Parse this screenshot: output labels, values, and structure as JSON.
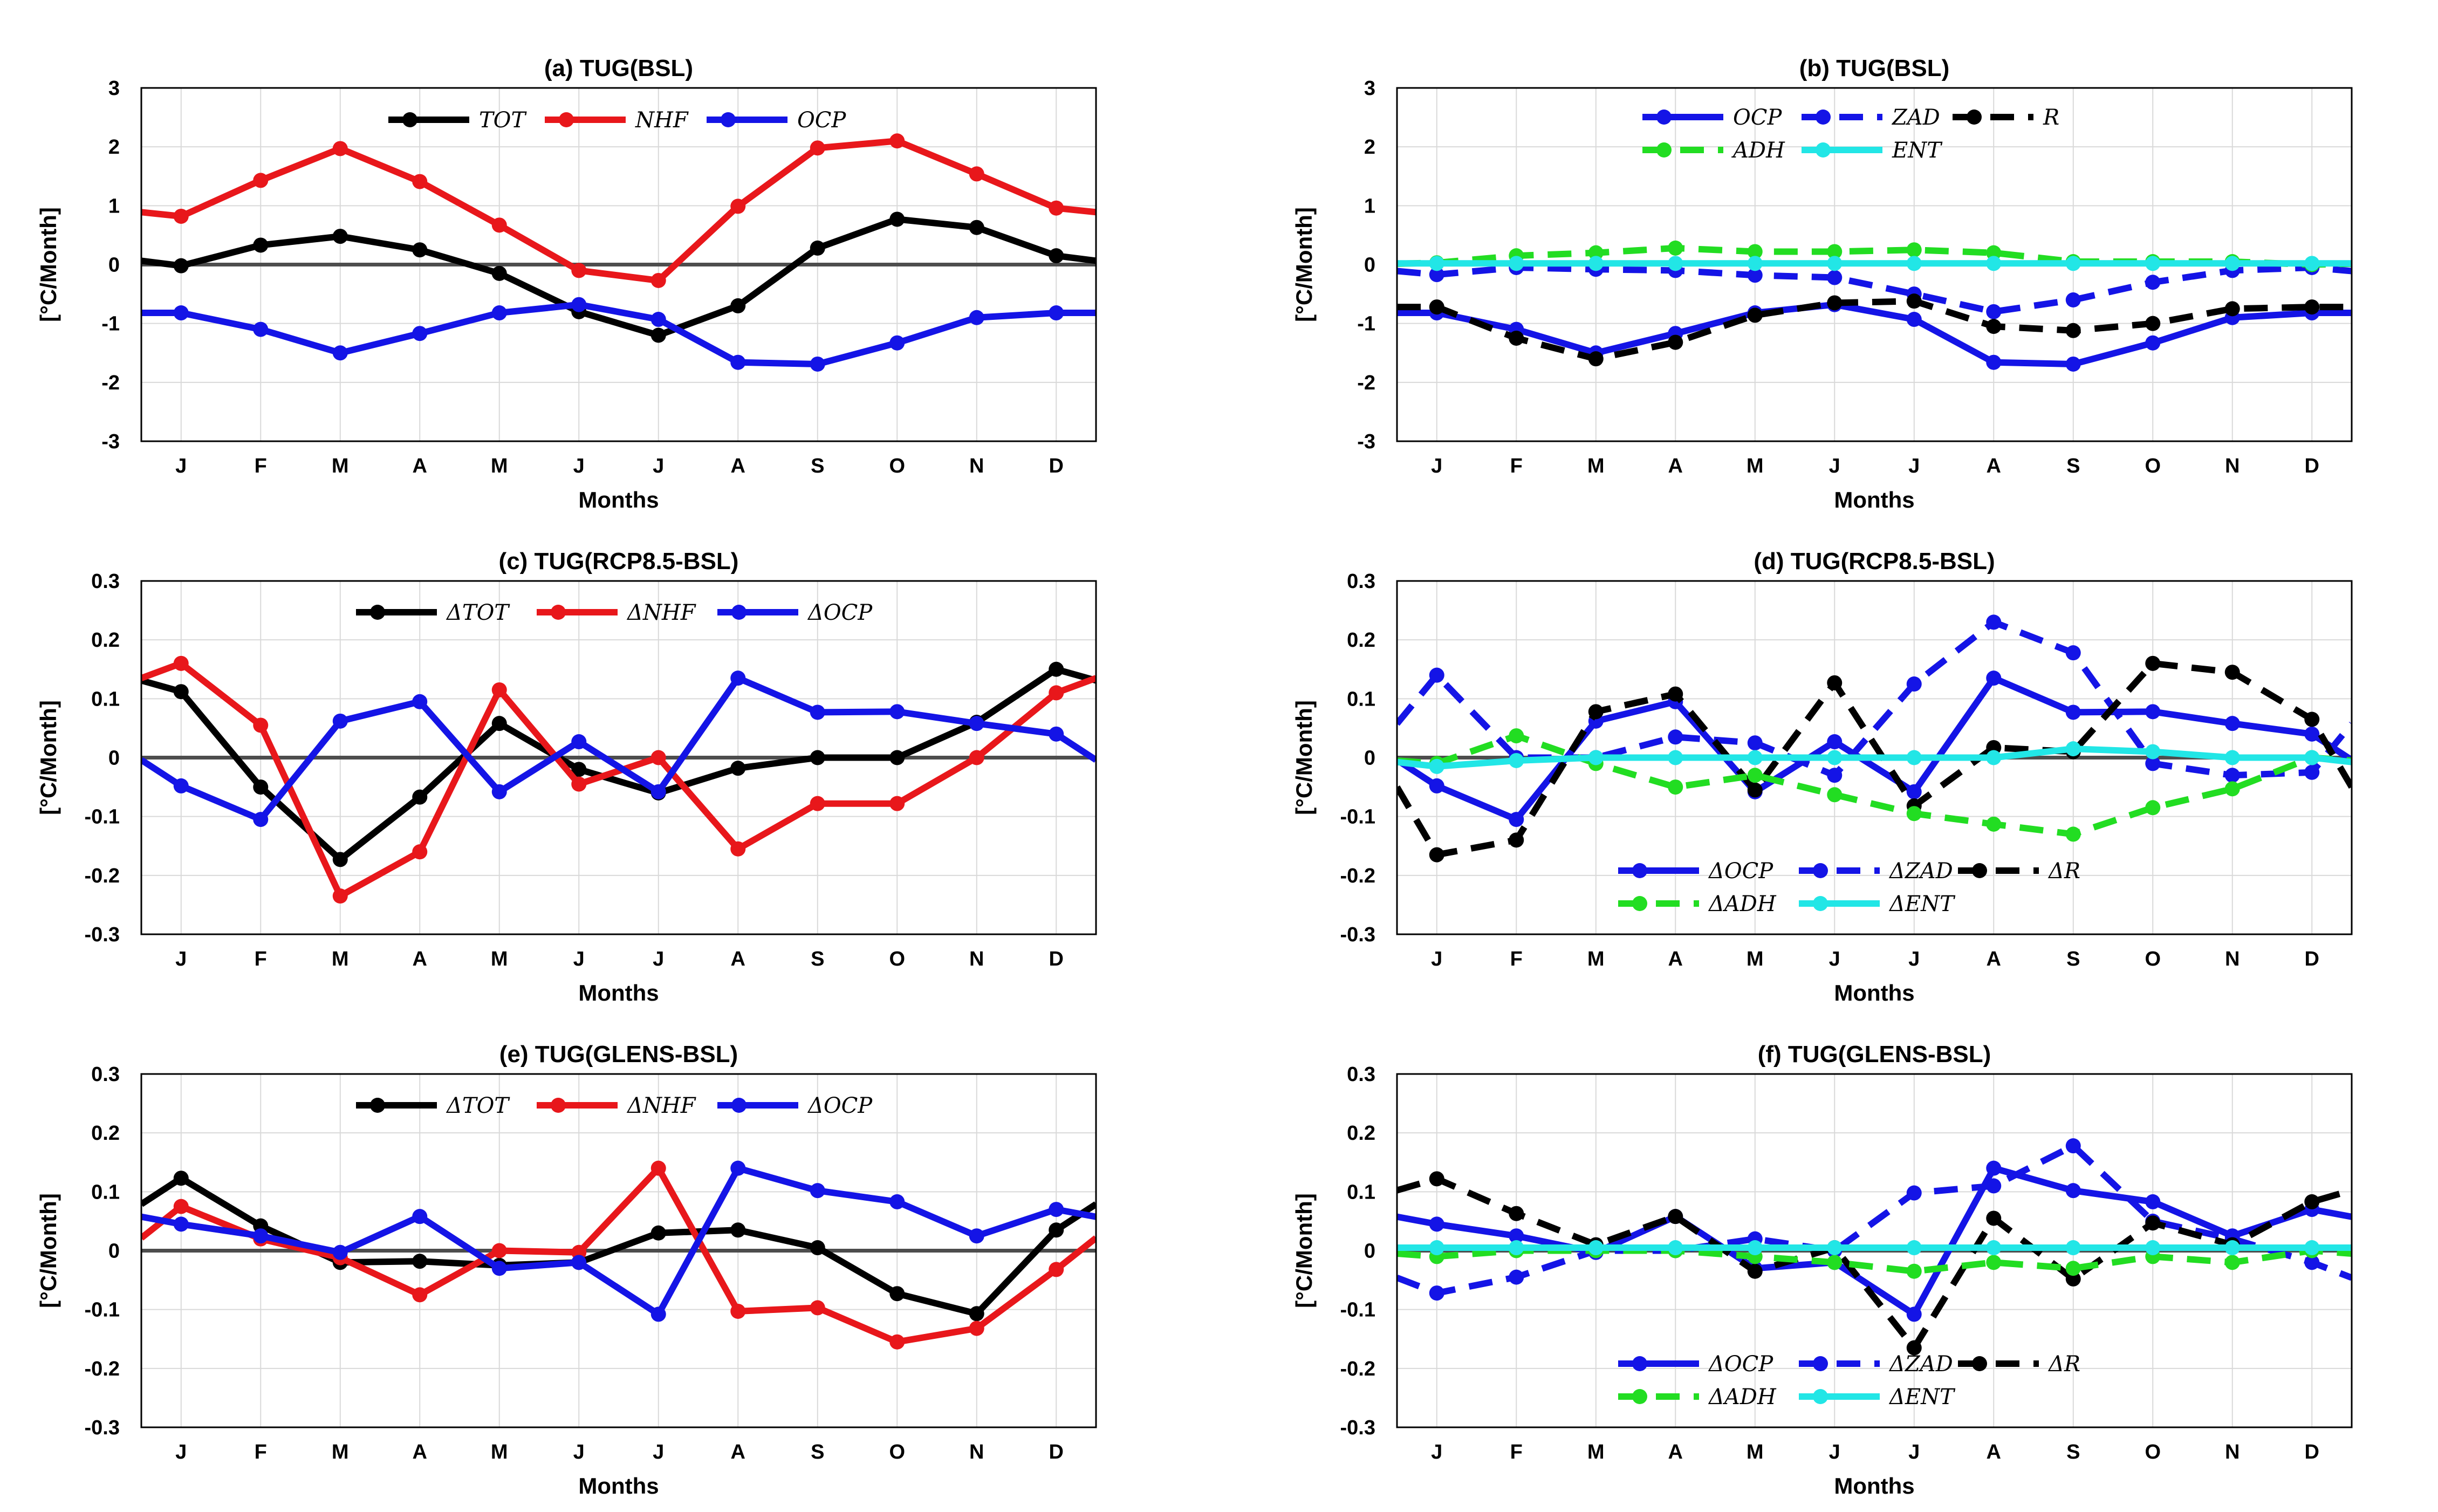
{
  "chart_data": [
    {
      "id": "a",
      "type": "line",
      "title": "(a) TUG(BSL)",
      "xlabel": "Months",
      "ylabel": "[°C/Month]",
      "ylim": [
        -3,
        3
      ],
      "yticks": [
        "3",
        "2",
        "1",
        "0",
        "-1",
        "-2",
        "-3"
      ],
      "ytick_values": [
        3,
        2,
        1,
        0,
        -1,
        -2,
        -3
      ],
      "categories": [
        "J",
        "F",
        "M",
        "A",
        "M",
        "J",
        "J",
        "A",
        "S",
        "O",
        "N",
        "D"
      ],
      "legend": {
        "position": "top-center",
        "rows": 1
      },
      "series": [
        {
          "name": "TOT",
          "color": "#000000",
          "dashed": false,
          "values": [
            -0.02,
            0.33,
            0.48,
            0.25,
            -0.15,
            -0.8,
            -1.2,
            -0.7,
            0.28,
            0.77,
            0.63,
            0.15
          ]
        },
        {
          "name": "NHF",
          "color": "#e8171b",
          "dashed": false,
          "values": [
            0.82,
            1.43,
            1.97,
            1.41,
            0.67,
            -0.1,
            -0.27,
            0.99,
            1.98,
            2.1,
            1.54,
            0.96
          ]
        },
        {
          "name": "OCP",
          "color": "#1414e6",
          "dashed": false,
          "values": [
            -0.82,
            -1.1,
            -1.5,
            -1.17,
            -0.82,
            -0.68,
            -0.93,
            -1.66,
            -1.69,
            -1.33,
            -0.9,
            -0.82
          ]
        }
      ]
    },
    {
      "id": "b",
      "type": "line",
      "title": "(b) TUG(BSL)",
      "xlabel": "Months",
      "ylabel": "[°C/Month]",
      "ylim": [
        -3,
        3
      ],
      "yticks": [
        "3",
        "2",
        "1",
        "0",
        "-1",
        "-2",
        "-3"
      ],
      "ytick_values": [
        3,
        2,
        1,
        0,
        -1,
        -2,
        -3
      ],
      "categories": [
        "J",
        "F",
        "M",
        "A",
        "M",
        "J",
        "J",
        "A",
        "S",
        "O",
        "N",
        "D"
      ],
      "legend": {
        "position": "top-center",
        "rows": 2
      },
      "series": [
        {
          "name": "OCP",
          "color": "#1414e6",
          "dashed": false,
          "values": [
            -0.82,
            -1.1,
            -1.5,
            -1.17,
            -0.82,
            -0.68,
            -0.93,
            -1.66,
            -1.69,
            -1.33,
            -0.9,
            -0.82
          ]
        },
        {
          "name": "ZAD",
          "color": "#1414e6",
          "dashed": true,
          "values": [
            -0.17,
            -0.05,
            -0.08,
            -0.1,
            -0.18,
            -0.22,
            -0.5,
            -0.8,
            -0.6,
            -0.3,
            -0.1,
            -0.05
          ]
        },
        {
          "name": "R",
          "color": "#000000",
          "dashed": true,
          "values": [
            -0.72,
            -1.25,
            -1.6,
            -1.32,
            -0.86,
            -0.65,
            -0.62,
            -1.05,
            -1.12,
            -1.0,
            -0.75,
            -0.72
          ]
        },
        {
          "name": "ADH",
          "color": "#22dd22",
          "dashed": true,
          "values": [
            0.03,
            0.15,
            0.2,
            0.28,
            0.22,
            0.22,
            0.25,
            0.2,
            0.05,
            0.05,
            0.05,
            0.0
          ]
        },
        {
          "name": "ENT",
          "color": "#22e6e6",
          "dashed": false,
          "values": [
            0.02,
            0.02,
            0.02,
            0.02,
            0.02,
            0.02,
            0.02,
            0.02,
            0.02,
            0.02,
            0.02,
            0.02
          ]
        }
      ]
    },
    {
      "id": "c",
      "type": "line",
      "title": "(c) TUG(RCP8.5-BSL)",
      "xlabel": "Months",
      "ylabel": "[°C/Month]",
      "ylim": [
        -0.3,
        0.3
      ],
      "yticks": [
        "0.3",
        "0.2",
        "0.1",
        "0",
        "-0.1",
        "-0.2",
        "-0.3"
      ],
      "ytick_values": [
        0.3,
        0.2,
        0.1,
        0,
        -0.1,
        -0.2,
        -0.3
      ],
      "categories": [
        "J",
        "F",
        "M",
        "A",
        "M",
        "J",
        "J",
        "A",
        "S",
        "O",
        "N",
        "D"
      ],
      "legend": {
        "position": "top-center",
        "rows": 1
      },
      "series": [
        {
          "name": "ΔTOT",
          "color": "#000000",
          "dashed": false,
          "values": [
            0.112,
            -0.05,
            -0.173,
            -0.067,
            0.058,
            -0.02,
            -0.06,
            -0.018,
            0.0,
            0.0,
            0.06,
            0.15
          ]
        },
        {
          "name": "ΔNHF",
          "color": "#e8171b",
          "dashed": false,
          "values": [
            0.16,
            0.055,
            -0.235,
            -0.16,
            0.115,
            -0.045,
            0.0,
            -0.155,
            -0.078,
            -0.078,
            0.0,
            0.11
          ]
        },
        {
          "name": "ΔOCP",
          "color": "#1414e6",
          "dashed": false,
          "values": [
            -0.048,
            -0.105,
            0.062,
            0.095,
            -0.058,
            0.027,
            -0.058,
            0.135,
            0.077,
            0.078,
            0.058,
            0.04
          ]
        }
      ]
    },
    {
      "id": "d",
      "type": "line",
      "title": "(d) TUG(RCP8.5-BSL)",
      "xlabel": "Months",
      "ylabel": "[°C/Month]",
      "ylim": [
        -0.3,
        0.3
      ],
      "yticks": [
        "0.3",
        "0.2",
        "0.1",
        "0",
        "-0.1",
        "-0.2",
        "-0.3"
      ],
      "ytick_values": [
        0.3,
        0.2,
        0.1,
        0,
        -0.1,
        -0.2,
        -0.3
      ],
      "categories": [
        "J",
        "F",
        "M",
        "A",
        "M",
        "J",
        "J",
        "A",
        "S",
        "O",
        "N",
        "D"
      ],
      "legend": {
        "position": "bottom-center",
        "rows": 2
      },
      "series": [
        {
          "name": "ΔOCP",
          "color": "#1414e6",
          "dashed": false,
          "values": [
            -0.048,
            -0.105,
            0.062,
            0.095,
            -0.058,
            0.027,
            -0.058,
            0.135,
            0.077,
            0.078,
            0.058,
            0.04
          ]
        },
        {
          "name": "ΔZAD",
          "color": "#1414e6",
          "dashed": true,
          "values": [
            0.14,
            0.0,
            0.0,
            0.035,
            0.025,
            -0.03,
            0.125,
            0.23,
            0.178,
            -0.01,
            -0.03,
            -0.025
          ]
        },
        {
          "name": "ΔR",
          "color": "#000000",
          "dashed": true,
          "values": [
            -0.165,
            -0.14,
            0.078,
            0.108,
            -0.055,
            0.127,
            -0.082,
            0.017,
            0.01,
            0.16,
            0.145,
            0.065
          ]
        },
        {
          "name": "ΔADH",
          "color": "#22dd22",
          "dashed": true,
          "values": [
            -0.01,
            0.037,
            -0.01,
            -0.05,
            -0.03,
            -0.063,
            -0.095,
            -0.113,
            -0.13,
            -0.085,
            -0.053,
            0.0
          ]
        },
        {
          "name": "ΔENT",
          "color": "#22e6e6",
          "dashed": false,
          "values": [
            -0.015,
            -0.005,
            0.0,
            0.0,
            0.0,
            0.0,
            0.0,
            0.0,
            0.015,
            0.01,
            0.0,
            0.0
          ]
        }
      ]
    },
    {
      "id": "e",
      "type": "line",
      "title": "(e) TUG(GLENS-BSL)",
      "xlabel": "Months",
      "ylabel": "[°C/Month]",
      "ylim": [
        -0.3,
        0.3
      ],
      "yticks": [
        "0.3",
        "0.2",
        "0.1",
        "0",
        "-0.1",
        "-0.2",
        "-0.3"
      ],
      "ytick_values": [
        0.3,
        0.2,
        0.1,
        0,
        -0.1,
        -0.2,
        -0.3
      ],
      "categories": [
        "J",
        "F",
        "M",
        "A",
        "M",
        "J",
        "J",
        "A",
        "S",
        "O",
        "N",
        "D"
      ],
      "legend": {
        "position": "top-center",
        "rows": 1
      },
      "series": [
        {
          "name": "ΔTOT",
          "color": "#000000",
          "dashed": false,
          "values": [
            0.123,
            0.042,
            -0.02,
            -0.018,
            -0.025,
            -0.02,
            0.03,
            0.035,
            0.005,
            -0.073,
            -0.107,
            0.035
          ]
        },
        {
          "name": "ΔNHF",
          "color": "#e8171b",
          "dashed": false,
          "values": [
            0.075,
            0.02,
            -0.012,
            -0.075,
            0.0,
            -0.003,
            0.14,
            -0.103,
            -0.097,
            -0.155,
            -0.132,
            -0.032
          ]
        },
        {
          "name": "ΔOCP",
          "color": "#1414e6",
          "dashed": false,
          "values": [
            0.045,
            0.025,
            -0.003,
            0.058,
            -0.03,
            -0.02,
            -0.108,
            0.14,
            0.102,
            0.083,
            0.025,
            0.07
          ]
        }
      ]
    },
    {
      "id": "f",
      "type": "line",
      "title": "(f) TUG(GLENS-BSL)",
      "xlabel": "Months",
      "ylabel": "[°C/Month]",
      "ylim": [
        -0.3,
        0.3
      ],
      "yticks": [
        "0.3",
        "0.2",
        "0.1",
        "0",
        "-0.1",
        "-0.2",
        "-0.3"
      ],
      "ytick_values": [
        0.3,
        0.2,
        0.1,
        0,
        -0.1,
        -0.2,
        -0.3
      ],
      "categories": [
        "J",
        "F",
        "M",
        "A",
        "M",
        "J",
        "J",
        "A",
        "S",
        "O",
        "N",
        "D"
      ],
      "legend": {
        "position": "bottom-center",
        "rows": 2
      },
      "series": [
        {
          "name": "ΔOCP",
          "color": "#1414e6",
          "dashed": false,
          "values": [
            0.045,
            0.025,
            -0.003,
            0.058,
            -0.03,
            -0.02,
            -0.108,
            0.14,
            0.102,
            0.083,
            0.025,
            0.07
          ]
        },
        {
          "name": "ΔZAD",
          "color": "#1414e6",
          "dashed": true,
          "values": [
            -0.072,
            -0.045,
            0.0,
            0.0,
            0.02,
            0.0,
            0.098,
            0.11,
            0.178,
            0.05,
            0.02,
            -0.02
          ]
        },
        {
          "name": "ΔR",
          "color": "#000000",
          "dashed": true,
          "values": [
            0.122,
            0.063,
            0.01,
            0.058,
            -0.035,
            0.005,
            -0.165,
            0.055,
            -0.048,
            0.047,
            0.01,
            0.083
          ]
        },
        {
          "name": "ΔADH",
          "color": "#22dd22",
          "dashed": true,
          "values": [
            -0.01,
            0.0,
            0.0,
            0.0,
            -0.01,
            -0.02,
            -0.035,
            -0.02,
            -0.03,
            -0.01,
            -0.02,
            0.0
          ]
        },
        {
          "name": "ΔENT",
          "color": "#22e6e6",
          "dashed": false,
          "values": [
            0.005,
            0.005,
            0.005,
            0.005,
            0.005,
            0.005,
            0.005,
            0.005,
            0.005,
            0.005,
            0.005,
            0.005
          ]
        }
      ]
    }
  ]
}
